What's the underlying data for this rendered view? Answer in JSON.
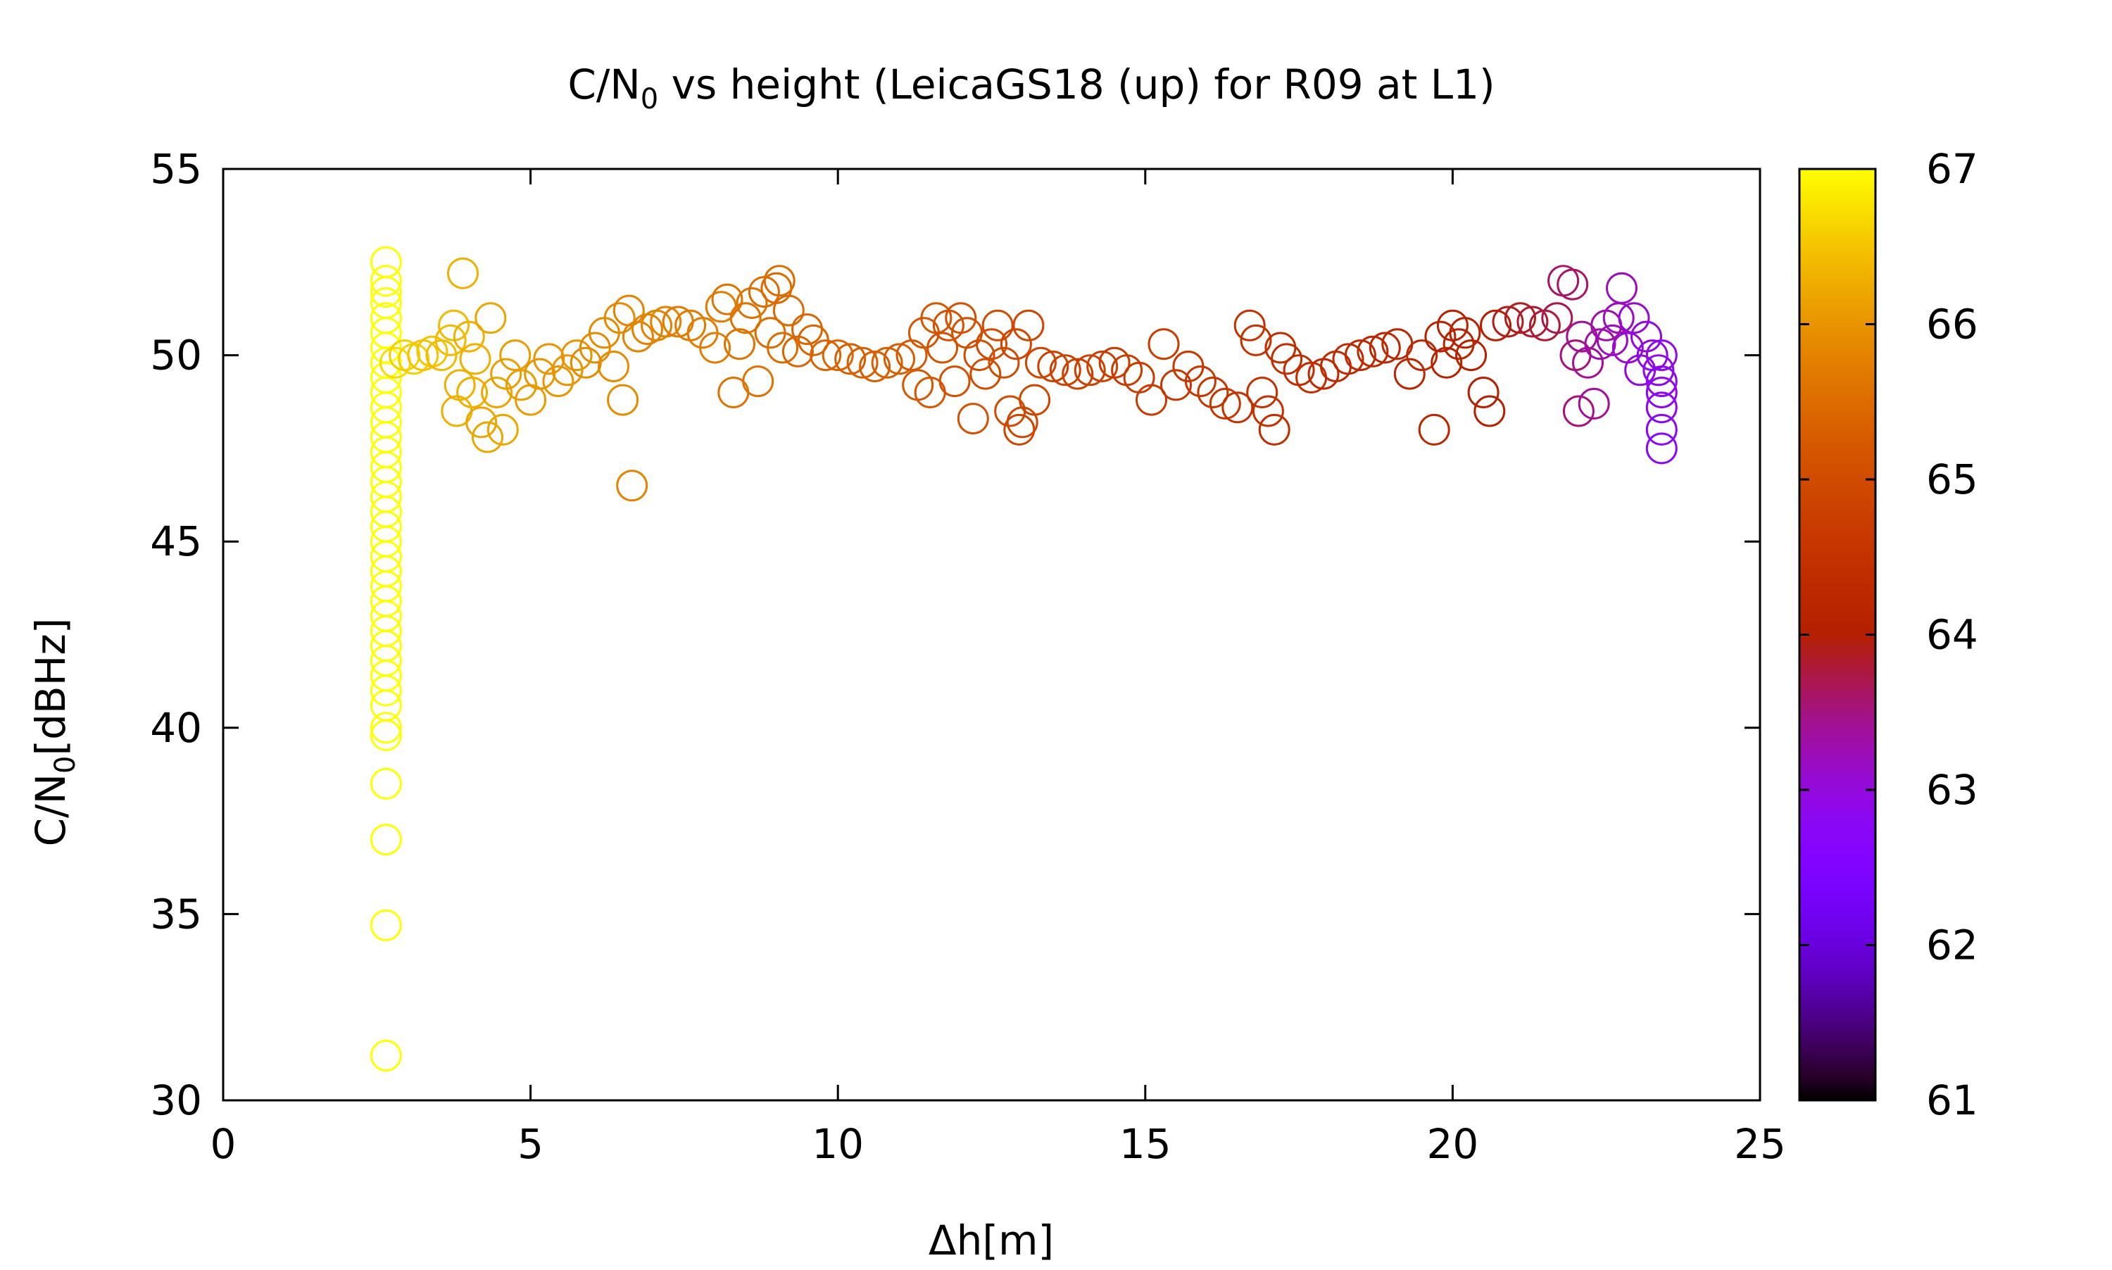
{
  "chart_data": {
    "type": "scatter",
    "title": {
      "pre": "C/N",
      "sub": "0",
      "post": " vs height (LeicaGS18 (up) for R09 at L1)"
    },
    "xlabel": "Δh[m]",
    "ylabel": {
      "pre": "C/N",
      "sub": "0",
      "post": "[dBHz]"
    },
    "xlim": [
      0,
      25
    ],
    "ylim": [
      30,
      55
    ],
    "x_ticks": [
      0,
      5,
      10,
      15,
      20,
      25
    ],
    "y_ticks": [
      30,
      35,
      40,
      45,
      50,
      55
    ],
    "colorbar": {
      "range": [
        61,
        67
      ],
      "ticks": [
        61,
        62,
        63,
        64,
        65,
        66,
        67
      ],
      "palette": "black-blue-purple-red-orange-yellow"
    },
    "marker": "open-circle",
    "grid": false,
    "points": [
      [
        2.65,
        52.5,
        67.0
      ],
      [
        2.65,
        52.0,
        67.0
      ],
      [
        2.65,
        51.7,
        67.0
      ],
      [
        2.65,
        51.4,
        67.0
      ],
      [
        2.65,
        51.0,
        67.0
      ],
      [
        2.65,
        50.6,
        67.0
      ],
      [
        2.65,
        50.2,
        67.0
      ],
      [
        2.65,
        49.8,
        67.0
      ],
      [
        2.65,
        49.4,
        67.0
      ],
      [
        2.65,
        49.0,
        67.0
      ],
      [
        2.65,
        48.6,
        67.0
      ],
      [
        2.65,
        48.2,
        67.0
      ],
      [
        2.65,
        47.8,
        67.0
      ],
      [
        2.65,
        47.4,
        67.0
      ],
      [
        2.65,
        47.0,
        67.0
      ],
      [
        2.65,
        46.6,
        67.0
      ],
      [
        2.65,
        46.2,
        67.0
      ],
      [
        2.65,
        45.8,
        67.0
      ],
      [
        2.65,
        45.4,
        67.0
      ],
      [
        2.65,
        45.0,
        67.0
      ],
      [
        2.65,
        44.6,
        67.0
      ],
      [
        2.65,
        44.2,
        67.0
      ],
      [
        2.65,
        43.8,
        67.0
      ],
      [
        2.65,
        43.4,
        67.0
      ],
      [
        2.65,
        43.0,
        67.0
      ],
      [
        2.65,
        42.6,
        67.0
      ],
      [
        2.65,
        42.2,
        67.0
      ],
      [
        2.65,
        41.8,
        67.0
      ],
      [
        2.65,
        41.4,
        67.0
      ],
      [
        2.65,
        41.0,
        67.0
      ],
      [
        2.65,
        40.6,
        67.0
      ],
      [
        2.65,
        40.0,
        67.0
      ],
      [
        2.65,
        39.8,
        67.0
      ],
      [
        2.65,
        38.5,
        67.0
      ],
      [
        2.65,
        37.0,
        67.0
      ],
      [
        2.65,
        34.7,
        67.0
      ],
      [
        2.65,
        31.2,
        67.0
      ],
      [
        2.8,
        49.8,
        66.7
      ],
      [
        2.95,
        50.0,
        66.6
      ],
      [
        3.1,
        49.9,
        66.6
      ],
      [
        3.25,
        50.0,
        66.5
      ],
      [
        3.4,
        50.1,
        66.5
      ],
      [
        3.55,
        50.0,
        66.4
      ],
      [
        3.7,
        50.4,
        66.4
      ],
      [
        3.75,
        50.8,
        66.4
      ],
      [
        3.85,
        49.2,
        66.3
      ],
      [
        3.8,
        48.5,
        66.3
      ],
      [
        3.9,
        52.2,
        66.3
      ],
      [
        4.0,
        50.5,
        66.3
      ],
      [
        4.05,
        49.0,
        66.3
      ],
      [
        4.1,
        49.9,
        66.3
      ],
      [
        4.2,
        48.2,
        66.2
      ],
      [
        4.3,
        47.8,
        66.2
      ],
      [
        4.35,
        51.0,
        66.2
      ],
      [
        4.45,
        49.0,
        66.2
      ],
      [
        4.55,
        48.0,
        66.2
      ],
      [
        4.6,
        49.5,
        66.1
      ],
      [
        4.75,
        50.0,
        66.1
      ],
      [
        4.85,
        49.2,
        66.1
      ],
      [
        5.0,
        48.8,
        66.1
      ],
      [
        5.15,
        49.5,
        66.0
      ],
      [
        5.3,
        49.9,
        66.0
      ],
      [
        5.45,
        49.3,
        66.0
      ],
      [
        5.6,
        49.6,
        66.0
      ],
      [
        5.75,
        50.0,
        66.0
      ],
      [
        5.9,
        49.8,
        65.9
      ],
      [
        6.05,
        50.2,
        65.9
      ],
      [
        6.2,
        50.6,
        65.9
      ],
      [
        6.35,
        49.7,
        65.9
      ],
      [
        6.45,
        51.0,
        65.9
      ],
      [
        6.5,
        48.8,
        65.9
      ],
      [
        6.6,
        51.2,
        65.8
      ],
      [
        6.65,
        46.5,
        65.8
      ],
      [
        6.75,
        50.5,
        65.8
      ],
      [
        6.9,
        50.7,
        65.8
      ],
      [
        7.05,
        50.8,
        65.8
      ],
      [
        7.2,
        50.9,
        65.8
      ],
      [
        7.4,
        50.9,
        65.7
      ],
      [
        7.6,
        50.8,
        65.7
      ],
      [
        7.8,
        50.6,
        65.7
      ],
      [
        8.0,
        50.2,
        65.7
      ],
      [
        8.1,
        51.3,
        65.7
      ],
      [
        8.2,
        51.5,
        65.6
      ],
      [
        8.3,
        49.0,
        65.6
      ],
      [
        8.4,
        50.3,
        65.6
      ],
      [
        8.5,
        51.0,
        65.6
      ],
      [
        8.6,
        51.4,
        65.6
      ],
      [
        8.7,
        49.3,
        65.6
      ],
      [
        8.8,
        51.7,
        65.5
      ],
      [
        8.9,
        50.6,
        65.5
      ],
      [
        9.0,
        51.8,
        65.5
      ],
      [
        9.05,
        52.0,
        65.5
      ],
      [
        9.1,
        50.2,
        65.5
      ],
      [
        9.2,
        51.2,
        65.5
      ],
      [
        9.35,
        50.1,
        65.4
      ],
      [
        9.5,
        50.7,
        65.4
      ],
      [
        9.6,
        50.4,
        65.4
      ],
      [
        9.8,
        50.0,
        65.4
      ],
      [
        10.0,
        50.0,
        65.4
      ],
      [
        10.2,
        49.9,
        65.3
      ],
      [
        10.4,
        49.8,
        65.3
      ],
      [
        10.6,
        49.7,
        65.3
      ],
      [
        10.8,
        49.8,
        65.3
      ],
      [
        11.0,
        49.9,
        65.3
      ],
      [
        11.2,
        50.0,
        65.2
      ],
      [
        11.3,
        49.2,
        65.2
      ],
      [
        11.4,
        50.6,
        65.2
      ],
      [
        11.5,
        49.0,
        65.2
      ],
      [
        11.6,
        51.0,
        65.2
      ],
      [
        11.7,
        50.2,
        65.1
      ],
      [
        11.8,
        50.8,
        65.1
      ],
      [
        11.9,
        49.3,
        65.1
      ],
      [
        12.0,
        51.0,
        65.1
      ],
      [
        12.1,
        50.6,
        65.1
      ],
      [
        12.2,
        48.3,
        65.1
      ],
      [
        12.3,
        50.0,
        65.0
      ],
      [
        12.4,
        49.5,
        65.0
      ],
      [
        12.5,
        50.3,
        65.0
      ],
      [
        12.6,
        50.8,
        65.0
      ],
      [
        12.7,
        49.8,
        65.0
      ],
      [
        12.8,
        48.5,
        65.0
      ],
      [
        12.9,
        50.3,
        64.9
      ],
      [
        12.95,
        48.0,
        64.9
      ],
      [
        13.0,
        48.2,
        64.9
      ],
      [
        13.1,
        50.8,
        64.9
      ],
      [
        13.2,
        48.8,
        64.9
      ],
      [
        13.3,
        49.8,
        64.9
      ],
      [
        13.5,
        49.7,
        64.8
      ],
      [
        13.7,
        49.6,
        64.8
      ],
      [
        13.9,
        49.5,
        64.8
      ],
      [
        14.1,
        49.6,
        64.8
      ],
      [
        14.3,
        49.7,
        64.8
      ],
      [
        14.5,
        49.8,
        64.7
      ],
      [
        14.7,
        49.6,
        64.7
      ],
      [
        14.9,
        49.4,
        64.7
      ],
      [
        15.1,
        48.8,
        64.7
      ],
      [
        15.3,
        50.3,
        64.7
      ],
      [
        15.5,
        49.2,
        64.6
      ],
      [
        15.7,
        49.7,
        64.6
      ],
      [
        15.9,
        49.3,
        64.6
      ],
      [
        16.1,
        49.0,
        64.6
      ],
      [
        16.3,
        48.7,
        64.6
      ],
      [
        16.5,
        48.6,
        64.5
      ],
      [
        16.7,
        50.8,
        64.5
      ],
      [
        16.8,
        50.4,
        64.5
      ],
      [
        16.9,
        49.0,
        64.5
      ],
      [
        17.0,
        48.5,
        64.5
      ],
      [
        17.1,
        48.0,
        64.4
      ],
      [
        17.2,
        50.2,
        64.4
      ],
      [
        17.3,
        49.9,
        64.4
      ],
      [
        17.5,
        49.6,
        64.4
      ],
      [
        17.7,
        49.4,
        64.4
      ],
      [
        17.9,
        49.5,
        64.3
      ],
      [
        18.1,
        49.7,
        64.3
      ],
      [
        18.3,
        49.9,
        64.3
      ],
      [
        18.5,
        50.0,
        64.3
      ],
      [
        18.7,
        50.1,
        64.3
      ],
      [
        18.9,
        50.2,
        64.2
      ],
      [
        19.1,
        50.3,
        64.2
      ],
      [
        19.3,
        49.5,
        64.2
      ],
      [
        19.5,
        50.0,
        64.2
      ],
      [
        19.7,
        48.0,
        64.2
      ],
      [
        19.8,
        50.5,
        64.1
      ],
      [
        19.9,
        49.8,
        64.1
      ],
      [
        20.0,
        50.8,
        64.1
      ],
      [
        20.1,
        50.3,
        64.1
      ],
      [
        20.2,
        50.6,
        64.1
      ],
      [
        20.3,
        50.0,
        64.0
      ],
      [
        20.5,
        49.0,
        64.0
      ],
      [
        20.6,
        48.5,
        64.0
      ],
      [
        20.7,
        50.8,
        64.0
      ],
      [
        20.9,
        50.9,
        63.9
      ],
      [
        21.1,
        51.0,
        63.9
      ],
      [
        21.3,
        50.9,
        63.8
      ],
      [
        21.5,
        50.8,
        63.8
      ],
      [
        21.7,
        51.0,
        63.7
      ],
      [
        21.8,
        52.0,
        63.6
      ],
      [
        21.95,
        51.9,
        63.6
      ],
      [
        22.0,
        50.0,
        63.5
      ],
      [
        22.05,
        48.5,
        63.5
      ],
      [
        22.1,
        50.5,
        63.4
      ],
      [
        22.2,
        49.8,
        63.4
      ],
      [
        22.3,
        48.7,
        63.4
      ],
      [
        22.4,
        50.3,
        63.3
      ],
      [
        22.5,
        50.8,
        63.3
      ],
      [
        22.6,
        50.4,
        63.2
      ],
      [
        22.7,
        51.0,
        63.2
      ],
      [
        22.75,
        51.8,
        63.2
      ],
      [
        22.85,
        50.2,
        63.1
      ],
      [
        22.95,
        51.0,
        63.1
      ],
      [
        23.05,
        49.6,
        63.0
      ],
      [
        23.15,
        50.5,
        63.0
      ],
      [
        23.25,
        50.0,
        62.9
      ],
      [
        23.35,
        49.6,
        62.9
      ],
      [
        23.4,
        49.0,
        62.9
      ],
      [
        23.4,
        48.6,
        62.8
      ],
      [
        23.4,
        48.0,
        62.8
      ],
      [
        23.4,
        47.5,
        62.8
      ],
      [
        23.4,
        49.3,
        62.8
      ],
      [
        23.4,
        50.0,
        62.9
      ]
    ]
  }
}
